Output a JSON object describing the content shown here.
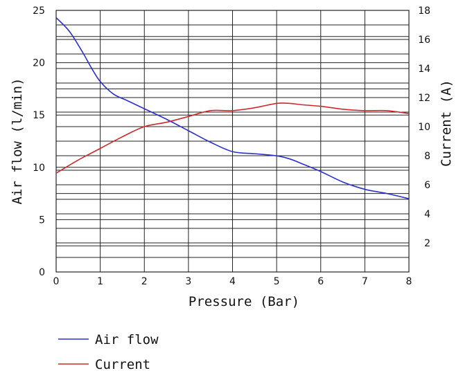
{
  "chart_data": {
    "type": "line",
    "xlabel": "Pressure (Bar)",
    "ylabel": "Air flow (l/min)",
    "y2label": "Current (A)",
    "xlim": [
      0,
      8
    ],
    "ylim": [
      0,
      25
    ],
    "y2lim": [
      0,
      18
    ],
    "x_ticks": [
      0,
      1,
      2,
      3,
      4,
      5,
      6,
      7,
      8
    ],
    "y_ticks": [
      0,
      5,
      10,
      15,
      20,
      25
    ],
    "y2_ticks": [
      2,
      4,
      6,
      8,
      10,
      12,
      14,
      16,
      18
    ],
    "grid": true,
    "legend_position": "bottom-left",
    "series": [
      {
        "name": "Air flow",
        "axis": "left",
        "color": "#2a2fd0",
        "x": [
          0,
          0.3,
          0.6,
          0.8,
          1.0,
          1.3,
          1.6,
          2.0,
          2.5,
          3.0,
          3.5,
          4.0,
          4.5,
          5.0,
          5.3,
          5.6,
          6.0,
          6.5,
          7.0,
          7.5,
          8.0
        ],
        "y": [
          24.3,
          23.0,
          21.0,
          19.5,
          18.2,
          17.0,
          16.4,
          15.6,
          14.6,
          13.5,
          12.4,
          11.5,
          11.3,
          11.1,
          10.8,
          10.3,
          9.6,
          8.6,
          7.9,
          7.5,
          7.0
        ]
      },
      {
        "name": "Current",
        "axis": "right",
        "color": "#cc2a2a",
        "x": [
          0,
          0.5,
          1.0,
          1.5,
          2.0,
          2.5,
          3.0,
          3.5,
          4.0,
          4.5,
          5.0,
          5.3,
          5.6,
          6.0,
          6.5,
          7.0,
          7.5,
          8.0
        ],
        "y": [
          6.8,
          7.7,
          8.5,
          9.3,
          10.0,
          10.3,
          10.7,
          11.1,
          11.1,
          11.3,
          11.6,
          11.6,
          11.5,
          11.4,
          11.2,
          11.1,
          11.1,
          10.9
        ]
      }
    ]
  }
}
